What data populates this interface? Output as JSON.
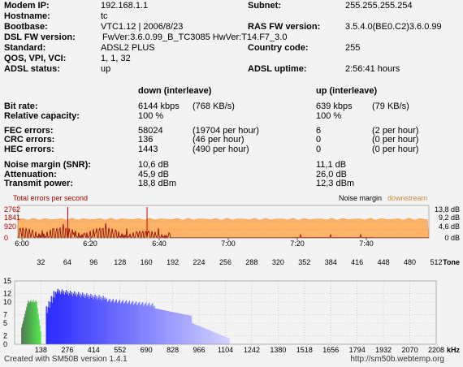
{
  "info": {
    "left": [
      {
        "label": "Modem IP:",
        "value": "192.168.1.1"
      },
      {
        "label": "Hostname:",
        "value": "tc"
      },
      {
        "label": "Bootbase:",
        "value": "VTC1.12 | 2006/8/23"
      },
      {
        "label": "DSL FW version:",
        "value": "FwVer:3.6.0.99_B_TC3085 HwVer:T14.F7_3.0"
      },
      {
        "label": "Standard:",
        "value": "ADSL2 PLUS"
      },
      {
        "label": "QOS, VPI, VCI:",
        "value": "1, 1, 32"
      },
      {
        "label": "ADSL status:",
        "value": "up"
      }
    ],
    "right": [
      {
        "label": "Subnet:",
        "value": "255.255.255.254"
      },
      {
        "label": "RAS FW version:",
        "value": "3.5.4.0(BE0.C2)3.6.0.99"
      },
      {
        "label": "Country code:",
        "value": "255"
      },
      {
        "label": "ADSL uptime:",
        "value": "2:56:41 hours"
      }
    ]
  },
  "stats": {
    "down_header": "down (interleave)",
    "up_header": "up (interleave)",
    "rows": [
      {
        "label": "Bit rate:",
        "down": "6144 kbps",
        "down_extra": "(768 KB/s)",
        "up": "639 kbps",
        "up_extra": "(79 KB/s)"
      },
      {
        "label": "Relative capacity:",
        "down": "100 %",
        "down_extra": "",
        "up": "100 %",
        "up_extra": ""
      },
      {
        "label": "FEC errors:",
        "down": "58024",
        "down_extra": "(19704 per hour)",
        "up": "6",
        "up_extra": "(2 per hour)"
      },
      {
        "label": "CRC errors:",
        "down": "136",
        "down_extra": "(46 per hour)",
        "up": "0",
        "up_extra": "(0 per hour)"
      },
      {
        "label": "HEC errors:",
        "down": "1443",
        "down_extra": "(490 per hour)",
        "up": "0",
        "up_extra": "(0 per hour)"
      },
      {
        "label": "Noise margin (SNR):",
        "down": "10,6 dB",
        "down_extra": "",
        "up": "11,1 dB",
        "up_extra": ""
      },
      {
        "label": "Attenuation:",
        "down": "45,9 dB",
        "down_extra": "",
        "up": "26,0 dB",
        "up_extra": ""
      },
      {
        "label": "Transmit power:",
        "down": "18,8 dBm",
        "down_extra": "",
        "up": "12,3 dBm",
        "up_extra": ""
      }
    ]
  },
  "chart_data": [
    {
      "type": "line",
      "legend_left": "Total errors per second",
      "legend_right_1": "Noise margin",
      "legend_right_2": "downstream",
      "left_ticks": [
        "2762",
        "1841",
        "920",
        "0"
      ],
      "right_ticks": [
        "13,8 dB",
        "9,2 dB",
        "4,6 dB",
        "0 dB"
      ],
      "x_ticks": [
        "6:00",
        "6:20",
        "6:40",
        "7:00",
        "7:20",
        "7:40"
      ],
      "noise_margin_db": 10.6,
      "ylim_db": [
        0,
        13.8
      ],
      "ylim_errors": [
        0,
        2762
      ],
      "error_spikes": [
        {
          "time": "6:17",
          "value": 2762
        },
        {
          "time": "6:44",
          "value": 2762
        }
      ],
      "colors": {
        "errors": "#8b0000",
        "noise": "#ffb366",
        "legend_left": "#b30000",
        "downstream": "#cc8a3d"
      }
    },
    {
      "type": "bar",
      "top_ticks": [
        "32",
        "64",
        "96",
        "128",
        "160",
        "192",
        "224",
        "256",
        "288",
        "320",
        "352",
        "384",
        "416",
        "448",
        "480",
        "512"
      ],
      "top_unit": "Tone",
      "y_ticks": [
        "15",
        "12",
        "10",
        "7",
        "5",
        "2",
        "0"
      ],
      "bottom_ticks": [
        "138",
        "276",
        "414",
        "552",
        "690",
        "828",
        "966",
        "1104",
        "1242",
        "1380",
        "1518",
        "1656",
        "1794",
        "1932",
        "2070",
        "2208"
      ],
      "bottom_unit": "kHz",
      "ylim": [
        0,
        15
      ],
      "upstream_tones": [
        8,
        31
      ],
      "downstream_tones": [
        38,
        260
      ],
      "colors": {
        "up": "#4dd64d",
        "down": "#3333ff"
      }
    }
  ],
  "footer": {
    "left": "Created with SM50B version 1.4.1",
    "right": "http://sm50b.webtemp.org"
  }
}
